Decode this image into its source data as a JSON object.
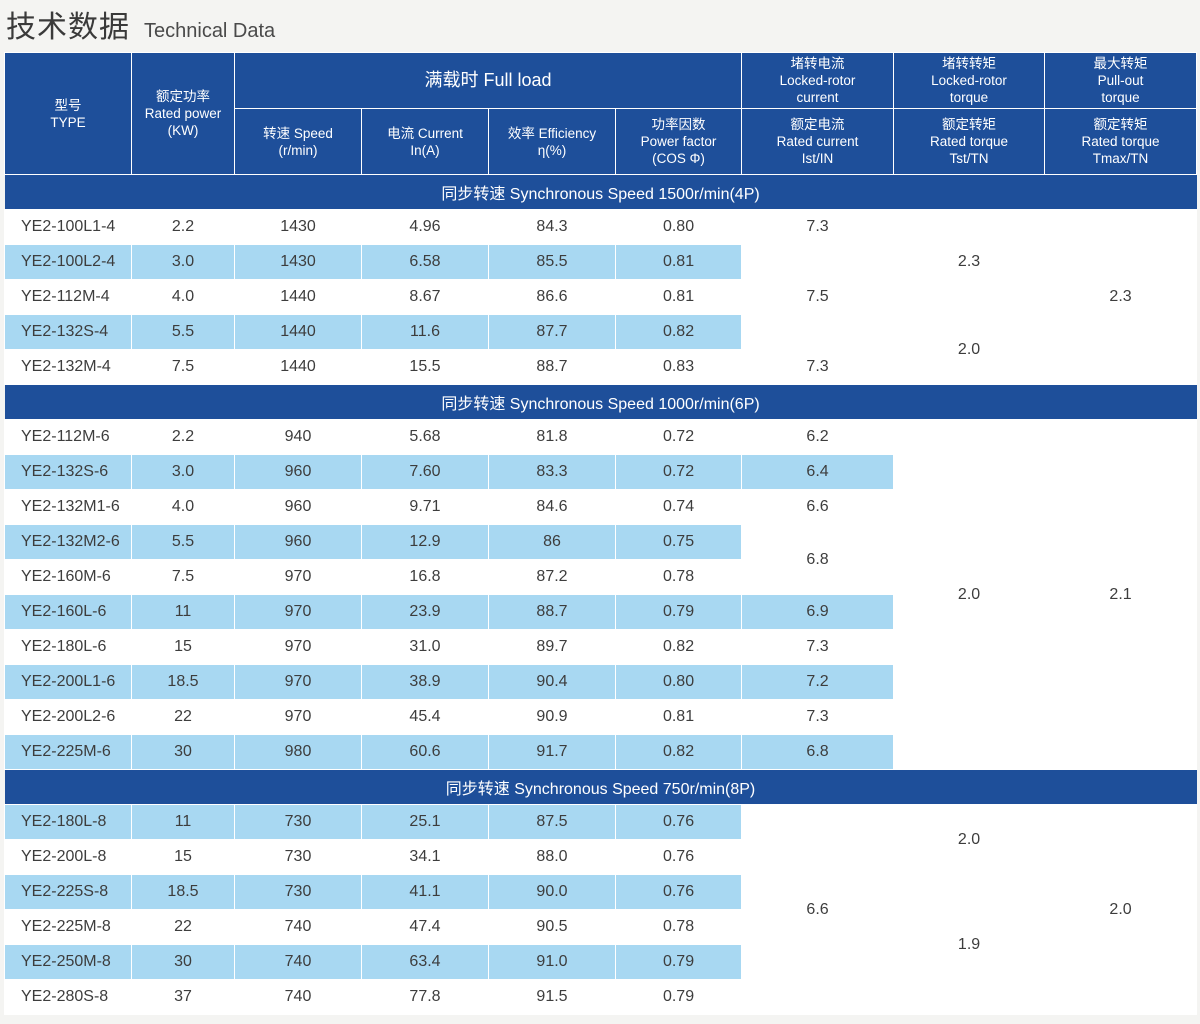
{
  "page": {
    "title_cn": "技术数据",
    "title_en": "Technical Data"
  },
  "headers": {
    "type": {
      "cn": "型号",
      "en": "TYPE"
    },
    "rated_power": {
      "cn": "额定功率",
      "en": "Rated power",
      "unit": "(KW)"
    },
    "full_load": "满载时 Full load",
    "speed": {
      "label": "转速 Speed",
      "unit": "(r/min)"
    },
    "current": {
      "label": "电流 Current",
      "unit": "In(A)"
    },
    "efficiency": {
      "label": "效率 Efficiency",
      "unit": "η(%)"
    },
    "power_factor": {
      "cn": "功率因数",
      "en": "Power factor",
      "unit": "(COS Φ)"
    },
    "locked_current": {
      "cn": "堵转电流",
      "en1": "Locked-rotor",
      "en2": "current"
    },
    "locked_torque": {
      "cn": "堵转转矩",
      "en1": "Locked-rotor",
      "en2": "torque"
    },
    "max_torque": {
      "cn": "最大转矩",
      "en1": "Pull-out",
      "en2": "torque"
    },
    "rated_current_ratio": {
      "cn": "额定电流",
      "en": "Rated current",
      "ratio": "Ist/IN"
    },
    "rated_torque_ratio": {
      "cn": "额定转矩",
      "en": "Rated torque",
      "ratio": "Tst/TN"
    },
    "max_torque_ratio": {
      "cn": "额定转矩",
      "en": "Rated torque",
      "ratio": "Tmax/TN"
    }
  },
  "sections": [
    {
      "title": "同步转速 Synchronous Speed 1500r/min(4P)",
      "rows": [
        {
          "model": "YE2-100L1-4",
          "power": "2.2",
          "speed": "1430",
          "current": "4.96",
          "eff": "84.3",
          "pf": "0.80"
        },
        {
          "model": "YE2-100L2-4",
          "power": "3.0",
          "speed": "1430",
          "current": "6.58",
          "eff": "85.5",
          "pf": "0.81"
        },
        {
          "model": "YE2-112M-4",
          "power": "4.0",
          "speed": "1440",
          "current": "8.67",
          "eff": "86.6",
          "pf": "0.81"
        },
        {
          "model": "YE2-132S-4",
          "power": "5.5",
          "speed": "1440",
          "current": "11.6",
          "eff": "87.7",
          "pf": "0.82"
        },
        {
          "model": "YE2-132M-4",
          "power": "7.5",
          "speed": "1440",
          "current": "15.5",
          "eff": "88.7",
          "pf": "0.83"
        }
      ],
      "ist": [
        "7.3",
        "7.5",
        "7.3"
      ],
      "tst": [
        "2.3",
        "2.0"
      ],
      "tmax": "2.3"
    },
    {
      "title": "同步转速 Synchronous Speed 1000r/min(6P)",
      "rows": [
        {
          "model": "YE2-112M-6",
          "power": "2.2",
          "speed": "940",
          "current": "5.68",
          "eff": "81.8",
          "pf": "0.72"
        },
        {
          "model": "YE2-132S-6",
          "power": "3.0",
          "speed": "960",
          "current": "7.60",
          "eff": "83.3",
          "pf": "0.72"
        },
        {
          "model": "YE2-132M1-6",
          "power": "4.0",
          "speed": "960",
          "current": "9.71",
          "eff": "84.6",
          "pf": "0.74"
        },
        {
          "model": "YE2-132M2-6",
          "power": "5.5",
          "speed": "960",
          "current": "12.9",
          "eff": "86",
          "pf": "0.75"
        },
        {
          "model": "YE2-160M-6",
          "power": "7.5",
          "speed": "970",
          "current": "16.8",
          "eff": "87.2",
          "pf": "0.78"
        },
        {
          "model": "YE2-160L-6",
          "power": "11",
          "speed": "970",
          "current": "23.9",
          "eff": "88.7",
          "pf": "0.79"
        },
        {
          "model": "YE2-180L-6",
          "power": "15",
          "speed": "970",
          "current": "31.0",
          "eff": "89.7",
          "pf": "0.82"
        },
        {
          "model": "YE2-200L1-6",
          "power": "18.5",
          "speed": "970",
          "current": "38.9",
          "eff": "90.4",
          "pf": "0.80"
        },
        {
          "model": "YE2-200L2-6",
          "power": "22",
          "speed": "970",
          "current": "45.4",
          "eff": "90.9",
          "pf": "0.81"
        },
        {
          "model": "YE2-225M-6",
          "power": "30",
          "speed": "980",
          "current": "60.6",
          "eff": "91.7",
          "pf": "0.82"
        }
      ],
      "ist": [
        "6.2",
        "6.4",
        "6.6",
        "6.8",
        "6.9",
        "7.3",
        "7.2",
        "7.3",
        "6.8"
      ],
      "tst": "2.0",
      "tmax": "2.1"
    },
    {
      "title": "同步转速 Synchronous Speed 750r/min(8P)",
      "rows": [
        {
          "model": "YE2-180L-8",
          "power": "11",
          "speed": "730",
          "current": "25.1",
          "eff": "87.5",
          "pf": "0.76"
        },
        {
          "model": "YE2-200L-8",
          "power": "15",
          "speed": "730",
          "current": "34.1",
          "eff": "88.0",
          "pf": "0.76"
        },
        {
          "model": "YE2-225S-8",
          "power": "18.5",
          "speed": "730",
          "current": "41.1",
          "eff": "90.0",
          "pf": "0.76"
        },
        {
          "model": "YE2-225M-8",
          "power": "22",
          "speed": "740",
          "current": "47.4",
          "eff": "90.5",
          "pf": "0.78"
        },
        {
          "model": "YE2-250M-8",
          "power": "30",
          "speed": "740",
          "current": "63.4",
          "eff": "91.0",
          "pf": "0.79"
        },
        {
          "model": "YE2-280S-8",
          "power": "37",
          "speed": "740",
          "current": "77.8",
          "eff": "91.5",
          "pf": "0.79"
        }
      ],
      "ist": "6.6",
      "tst": [
        "2.0",
        "1.9"
      ],
      "tmax": "2.0"
    }
  ]
}
